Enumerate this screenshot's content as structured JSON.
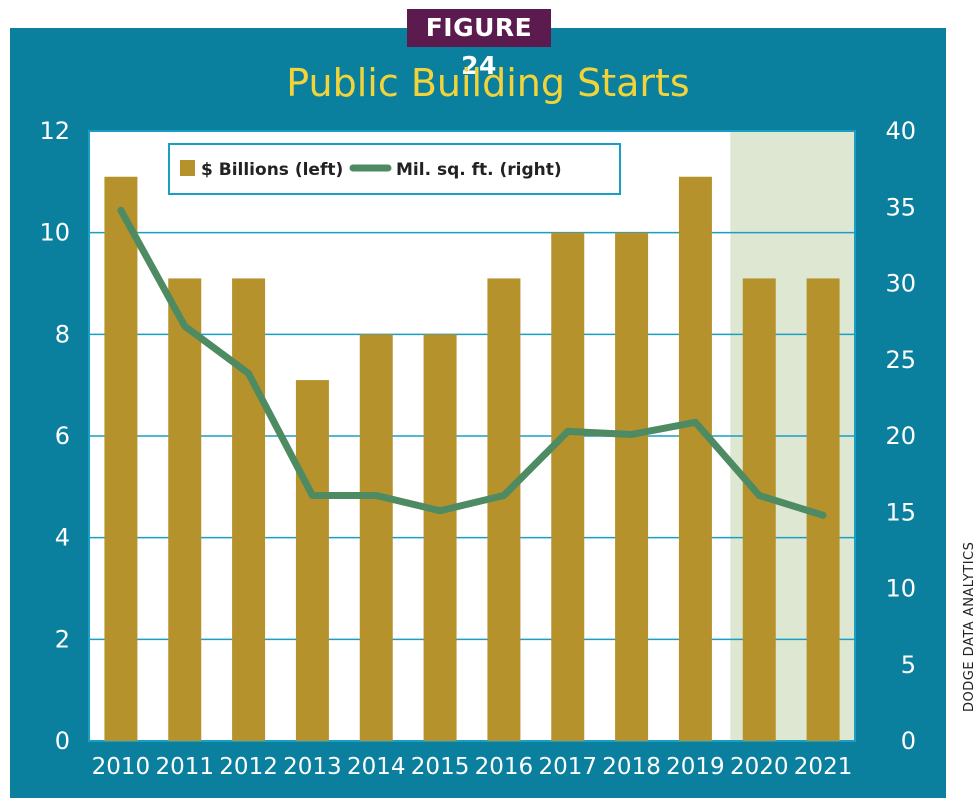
{
  "figure_label": "FIGURE 24",
  "credit": "DODGE DATA ANALYTICS",
  "colors": {
    "frame": "#0b7f9e",
    "figure_label_bg": "#5c1b4f",
    "title": "#f2d43a",
    "bar": "#b5922c",
    "line": "#4e8b62",
    "forecast_shade": "#dde7d2",
    "gridline": "#1a9ec4",
    "tick_text": "#ffffff"
  },
  "chart_data": {
    "type": "bar",
    "title": "Public Building Starts",
    "categories": [
      "2010",
      "2011",
      "2012",
      "2013",
      "2014",
      "2015",
      "2016",
      "2017",
      "2018",
      "2019",
      "2020",
      "2021"
    ],
    "series": [
      {
        "name": "$ Billions (left)",
        "type": "bar",
        "axis": "left",
        "values": [
          11.1,
          9.1,
          9.1,
          7.1,
          8.0,
          8.0,
          9.1,
          10.0,
          10.0,
          11.1,
          9.1,
          9.1
        ]
      },
      {
        "name": "Mil. sq. ft. (right)",
        "type": "line",
        "axis": "right",
        "values": [
          34.8,
          27.2,
          24.1,
          16.1,
          16.1,
          15.1,
          16.1,
          20.3,
          20.1,
          20.9,
          16.1,
          14.8
        ]
      }
    ],
    "y_left": {
      "ylim": [
        0,
        12
      ],
      "ticks": [
        "0",
        "2",
        "4",
        "6",
        "8",
        "10",
        "12"
      ]
    },
    "y_right": {
      "ylim": [
        0,
        40
      ],
      "ticks": [
        "0",
        "5",
        "10",
        "15",
        "20",
        "25",
        "30",
        "35",
        "40"
      ]
    },
    "shaded_categories": [
      "2020",
      "2021"
    ],
    "grid": true,
    "legend_position": "top-left"
  }
}
